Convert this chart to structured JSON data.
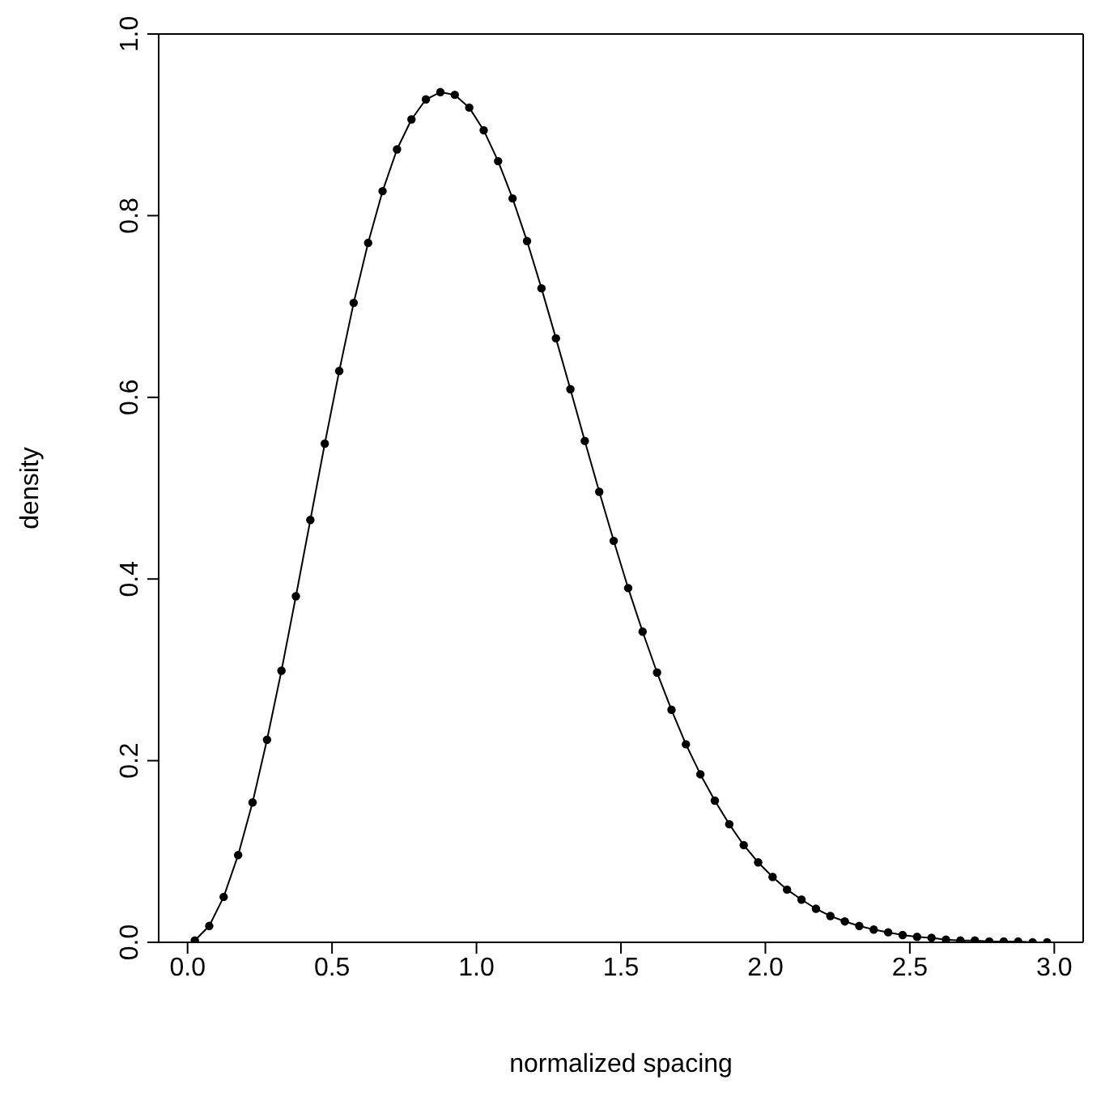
{
  "chart_data": {
    "type": "line",
    "xlabel": "normalized spacing",
    "ylabel": "density",
    "marker": "circle",
    "line_style": "solid",
    "grid": false,
    "legend": false,
    "xlim": [
      -0.1,
      3.1
    ],
    "xticks": [
      {
        "value": 0,
        "label": "0.0"
      },
      {
        "value": 0.5,
        "label": "0.5"
      },
      {
        "value": 1,
        "label": "1.0"
      },
      {
        "value": 1.5,
        "label": "1.5"
      },
      {
        "value": 2,
        "label": "2.0"
      },
      {
        "value": 2.5,
        "label": "2.5"
      },
      {
        "value": 3,
        "label": "3.0"
      }
    ],
    "ylim": [
      0,
      1
    ],
    "yticks": [
      {
        "value": 0,
        "label": "0.0"
      },
      {
        "value": 0.2,
        "label": "0.2"
      },
      {
        "value": 0.4,
        "label": "0.4"
      },
      {
        "value": 0.6,
        "label": "0.6"
      },
      {
        "value": 0.8,
        "label": "0.8"
      },
      {
        "value": 1,
        "label": "1.0"
      }
    ],
    "x": [
      0.025,
      0.075,
      0.125,
      0.175,
      0.225,
      0.275,
      0.325,
      0.375,
      0.425,
      0.475,
      0.525,
      0.575,
      0.625,
      0.675,
      0.725,
      0.775,
      0.825,
      0.875,
      0.925,
      0.975,
      1.025,
      1.075,
      1.125,
      1.175,
      1.225,
      1.275,
      1.325,
      1.375,
      1.425,
      1.475,
      1.525,
      1.575,
      1.625,
      1.675,
      1.725,
      1.775,
      1.825,
      1.875,
      1.925,
      1.975,
      2.025,
      2.075,
      2.125,
      2.175,
      2.225,
      2.275,
      2.325,
      2.375,
      2.425,
      2.475,
      2.525,
      2.575,
      2.625,
      2.675,
      2.725,
      2.775,
      2.825,
      2.875,
      2.925,
      2.975
    ],
    "series": [
      {
        "color": "#000000",
        "values": [
          0.002,
          0.018,
          0.05,
          0.096,
          0.154,
          0.223,
          0.299,
          0.381,
          0.465,
          0.549,
          0.629,
          0.704,
          0.77,
          0.827,
          0.873,
          0.906,
          0.928,
          0.936,
          0.933,
          0.919,
          0.894,
          0.86,
          0.819,
          0.772,
          0.72,
          0.665,
          0.609,
          0.552,
          0.496,
          0.442,
          0.39,
          0.342,
          0.297,
          0.256,
          0.218,
          0.185,
          0.156,
          0.13,
          0.107,
          0.088,
          0.072,
          0.058,
          0.047,
          0.037,
          0.029,
          0.023,
          0.018,
          0.014,
          0.011,
          0.008,
          0.006,
          0.005,
          0.003,
          0.002,
          0.002,
          0.001,
          0.001,
          0.001,
          0.0,
          0.0
        ]
      }
    ]
  }
}
